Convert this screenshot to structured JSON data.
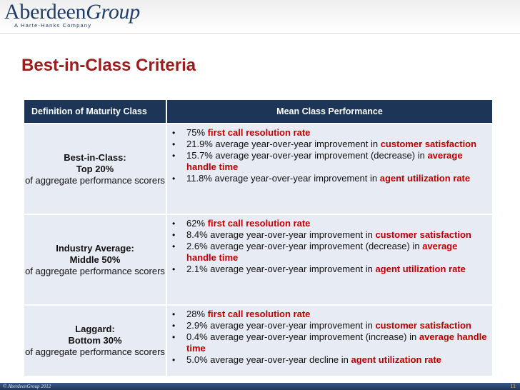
{
  "brand": {
    "name_part1": "Aberdeen",
    "name_part2": "Group",
    "tagline": "A Harte-Hanks Company"
  },
  "title": "Best-in-Class Criteria",
  "table": {
    "headers": [
      "Definition of Maturity Class",
      "Mean Class Performance"
    ],
    "rows": [
      {
        "class_name": "Best-in-Class:",
        "class_pct": "Top 20%",
        "class_desc": "of aggregate performance scorers",
        "items": [
          [
            {
              "t": "75% "
            },
            {
              "t": "first call resolution rate",
              "h": 1
            }
          ],
          [
            {
              "t": "21.9% average year-over-year improvement in "
            },
            {
              "t": "customer satisfaction",
              "h": 1
            }
          ],
          [
            {
              "t": "15.7% average year-over-year improvement (decrease) in "
            },
            {
              "t": "average handle time",
              "h": 1
            }
          ],
          [
            {
              "t": "11.8% average year-over-year improvement in "
            },
            {
              "t": "agent utilization rate",
              "h": 1
            }
          ]
        ]
      },
      {
        "class_name": "Industry Average:",
        "class_pct": "Middle 50%",
        "class_desc": "of aggregate performance scorers",
        "items": [
          [
            {
              "t": "62% "
            },
            {
              "t": "first call resolution rate",
              "h": 1
            }
          ],
          [
            {
              "t": "8.4% average year-over-year improvement in "
            },
            {
              "t": "customer satisfaction",
              "h": 1
            }
          ],
          [
            {
              "t": "2.6% average year-over-year improvement (decrease) in "
            },
            {
              "t": "average handle time",
              "h": 1
            }
          ],
          [
            {
              "t": "2.1% average year-over-year improvement in "
            },
            {
              "t": "agent utilization rate",
              "h": 1
            }
          ]
        ]
      },
      {
        "class_name": "Laggard:",
        "class_pct": "Bottom 30%",
        "class_desc": "of aggregate performance scorers",
        "items": [
          [
            {
              "t": "28% "
            },
            {
              "t": "first call resolution rate",
              "h": 1
            }
          ],
          [
            {
              "t": "2.9% average year-over-year improvement in "
            },
            {
              "t": "customer satisfaction",
              "h": 1
            }
          ],
          [
            {
              "t": "0.4% average year-over-year improvement (increase) in "
            },
            {
              "t": "average handle time",
              "h": 1
            }
          ],
          [
            {
              "t": "5.0% average year-over-year decline in "
            },
            {
              "t": "agent utilization rate",
              "h": 1
            }
          ]
        ]
      }
    ]
  },
  "footer": {
    "copyright": "© AberdeenGroup 2012",
    "page_number": "11"
  },
  "colors": {
    "title": "#a01c1c",
    "header_bg": "#1d3557",
    "cell_bg": "#e7ebf3",
    "highlight": "#c00000"
  }
}
